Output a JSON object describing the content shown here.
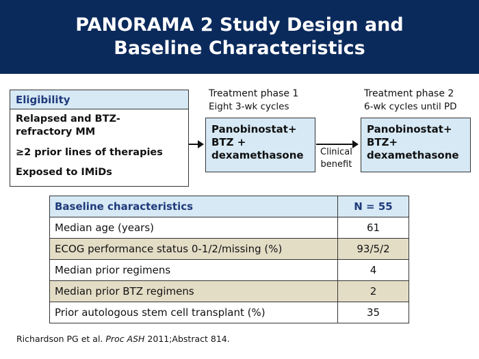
{
  "title": {
    "line1": "PANORAMA 2 Study Design and",
    "line2": "Baseline Characteristics"
  },
  "eligibility": {
    "heading": "Eligibility",
    "items": [
      "Relapsed and BTZ-",
      "refractory MM",
      "≥2 prior lines of therapies",
      "Exposed to IMiDs"
    ]
  },
  "phase1": {
    "label": "Treatment phase 1",
    "sublabel": "Eight 3-wk cycles",
    "box_lines": [
      "Panobinostat+",
      "BTZ +",
      "dexamethasone"
    ]
  },
  "phase2": {
    "label": "Treatment phase 2",
    "sublabel": "6-wk cycles until PD",
    "box_lines": [
      "Panobinostat+",
      "BTZ+",
      "dexamethasone"
    ]
  },
  "transition": {
    "line1": "Clinical",
    "line2": "benefit"
  },
  "baseline_table": {
    "header": [
      "Baseline characteristics",
      "N = 55"
    ],
    "rows": [
      [
        "Median age (years)",
        "61"
      ],
      [
        "ECOG performance status 0-1/2/missing (%)",
        "93/5/2"
      ],
      [
        "Median prior regimens",
        "4"
      ],
      [
        "Median prior BTZ regimens",
        "2"
      ],
      [
        "Prior autologous stem cell transplant (%)",
        "35"
      ]
    ]
  },
  "reference": {
    "authors": "Richardson PG et al. ",
    "journal": "Proc ASH",
    "rest": " 2011;Abstract 814."
  },
  "colors": {
    "title_bg": "#0b2a5c",
    "header_fill": "#d6e9f5",
    "alt_row_fill": "#e4ddc6",
    "heading_text": "#1f3a7a"
  }
}
